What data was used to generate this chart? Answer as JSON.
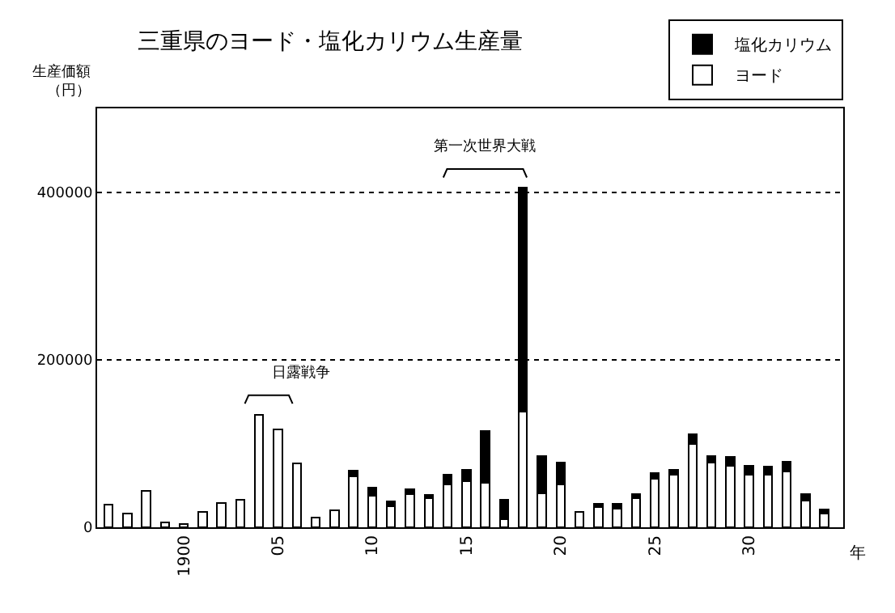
{
  "chart_data": {
    "type": "bar",
    "stacked": true,
    "title": "三重県のヨード・塩化カリウム生産量",
    "ylabel": "生産価額（円）",
    "xlabel": "年",
    "x": [
      1896,
      1897,
      1898,
      1899,
      1900,
      1901,
      1902,
      1903,
      1904,
      1905,
      1906,
      1907,
      1908,
      1909,
      1910,
      1911,
      1912,
      1913,
      1914,
      1915,
      1916,
      1917,
      1918,
      1919,
      1920,
      1921,
      1922,
      1923,
      1924,
      1925,
      1926,
      1927,
      1928,
      1929,
      1930,
      1931,
      1932,
      1933,
      1934
    ],
    "series": [
      {
        "name": "ヨード",
        "color": "#ffffff",
        "values": [
          27000,
          16000,
          43000,
          6000,
          4000,
          18000,
          29000,
          33000,
          134000,
          117000,
          76000,
          12000,
          20000,
          61000,
          38000,
          25000,
          40000,
          35000,
          51000,
          55000,
          53000,
          10000,
          138000,
          41000,
          51000,
          18000,
          24000,
          22000,
          35000,
          58000,
          63000,
          99000,
          77000,
          73000,
          63000,
          63000,
          67000,
          32000,
          16000
        ]
      },
      {
        "name": "塩化カリウム",
        "color": "#000000",
        "values": [
          0,
          0,
          0,
          0,
          0,
          0,
          0,
          0,
          0,
          0,
          0,
          0,
          0,
          7000,
          9000,
          6000,
          5000,
          4000,
          12000,
          14000,
          62000,
          23000,
          267000,
          44000,
          26000,
          0,
          4000,
          6000,
          5000,
          7000,
          6000,
          12000,
          8000,
          11000,
          10000,
          9000,
          11000,
          8000,
          5000
        ]
      }
    ],
    "xlim": [
      1895.4,
      1935
    ],
    "xticks": [
      {
        "value": 1900,
        "label": "1900"
      },
      {
        "value": 1905,
        "label": "05"
      },
      {
        "value": 1910,
        "label": "10"
      },
      {
        "value": 1915,
        "label": "15"
      },
      {
        "value": 1920,
        "label": "20"
      },
      {
        "value": 1925,
        "label": "25"
      },
      {
        "value": 1930,
        "label": "30"
      }
    ],
    "ylim": [
      0,
      500000
    ],
    "yticks": [
      0,
      200000,
      400000
    ],
    "grid": "y",
    "legend": "top right",
    "annotations": [
      "日露戦争",
      "第一次世界大戦"
    ]
  }
}
